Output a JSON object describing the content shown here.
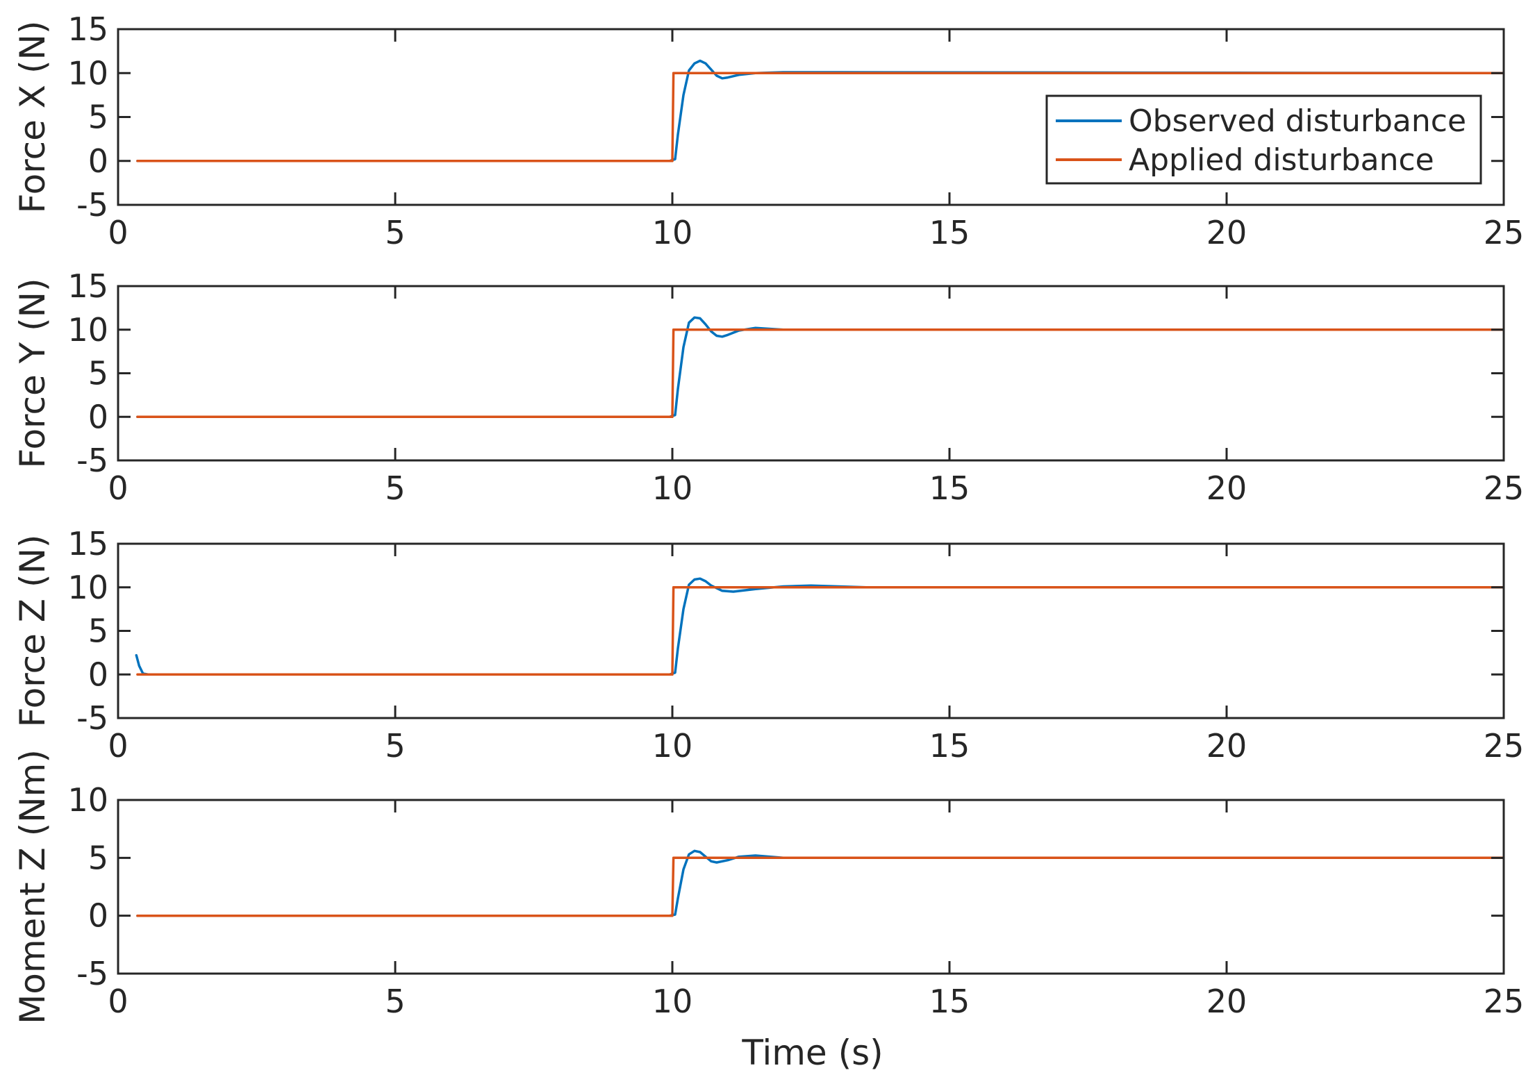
{
  "colors": {
    "observed": "#0072bd",
    "applied": "#d95319",
    "axis": "#262626",
    "background": "#ffffff"
  },
  "chart_data": [
    {
      "type": "line",
      "ylabel": "Force X (N)",
      "xlabel": "",
      "xlim": [
        0,
        25
      ],
      "ylim": [
        -5,
        15
      ],
      "xticks": [
        "0",
        "5",
        "10",
        "15",
        "20",
        "25"
      ],
      "yticks": [
        "15",
        "10",
        "5",
        "0",
        "-5"
      ],
      "grid": false,
      "legend": {
        "position": "inside-right",
        "entries": [
          "Observed disturbance",
          "Applied disturbance"
        ]
      },
      "series": [
        {
          "name": "Observed disturbance",
          "x": [
            0.35,
            9.95,
            10.05,
            10.1,
            10.2,
            10.3,
            10.4,
            10.5,
            10.6,
            10.7,
            10.8,
            10.9,
            11.0,
            11.2,
            11.5,
            12.0,
            13.0,
            25.0
          ],
          "y": [
            0,
            0,
            0.2,
            3.0,
            7.5,
            10.3,
            11.1,
            11.4,
            11.1,
            10.4,
            9.7,
            9.4,
            9.5,
            9.8,
            10.0,
            10.1,
            10.1,
            10.0
          ]
        },
        {
          "name": "Applied disturbance",
          "x": [
            0.35,
            10.0,
            10.02,
            25.0
          ],
          "y": [
            0,
            0,
            10,
            10
          ]
        }
      ]
    },
    {
      "type": "line",
      "ylabel": "Force Y (N)",
      "xlabel": "",
      "xlim": [
        0,
        25
      ],
      "ylim": [
        -5,
        15
      ],
      "xticks": [
        "0",
        "5",
        "10",
        "15",
        "20",
        "25"
      ],
      "yticks": [
        "15",
        "10",
        "5",
        "0",
        "-5"
      ],
      "grid": false,
      "series": [
        {
          "name": "Observed disturbance",
          "x": [
            0.35,
            9.95,
            10.05,
            10.1,
            10.2,
            10.3,
            10.4,
            10.5,
            10.6,
            10.7,
            10.8,
            10.9,
            11.0,
            11.2,
            11.5,
            12.0,
            25.0
          ],
          "y": [
            0,
            0,
            0.2,
            3.2,
            8.0,
            10.8,
            11.4,
            11.3,
            10.6,
            9.8,
            9.3,
            9.2,
            9.4,
            9.9,
            10.2,
            10.0,
            10.0
          ]
        },
        {
          "name": "Applied disturbance",
          "x": [
            0.35,
            10.0,
            10.02,
            25.0
          ],
          "y": [
            0,
            0,
            10,
            10
          ]
        }
      ]
    },
    {
      "type": "line",
      "ylabel": "Force Z (N)",
      "xlabel": "",
      "xlim": [
        0,
        25
      ],
      "ylim": [
        -5,
        15
      ],
      "xticks": [
        "0",
        "5",
        "10",
        "15",
        "20",
        "25"
      ],
      "yticks": [
        "15",
        "10",
        "5",
        "0",
        "-5"
      ],
      "grid": false,
      "series": [
        {
          "name": "Observed disturbance",
          "x": [
            0.33,
            0.38,
            0.45,
            0.55,
            9.95,
            10.05,
            10.1,
            10.2,
            10.3,
            10.4,
            10.5,
            10.6,
            10.7,
            10.9,
            11.1,
            11.5,
            12.0,
            12.5,
            13.5,
            25.0
          ],
          "y": [
            2.2,
            1.0,
            0.1,
            0,
            0,
            0.2,
            3.0,
            7.5,
            10.3,
            10.9,
            11.0,
            10.7,
            10.2,
            9.6,
            9.5,
            9.8,
            10.1,
            10.2,
            10.0,
            10.0
          ]
        },
        {
          "name": "Applied disturbance",
          "x": [
            0.35,
            10.0,
            10.02,
            25.0
          ],
          "y": [
            0,
            0,
            10,
            10
          ]
        }
      ]
    },
    {
      "type": "line",
      "ylabel": "Moment Z (Nm)",
      "xlabel": "Time (s)",
      "xlim": [
        0,
        25
      ],
      "ylim": [
        -5,
        10
      ],
      "xticks": [
        "0",
        "5",
        "10",
        "15",
        "20",
        "25"
      ],
      "yticks": [
        "10",
        "5",
        "0",
        "-5"
      ],
      "grid": false,
      "series": [
        {
          "name": "Observed disturbance",
          "x": [
            0.35,
            9.95,
            10.05,
            10.1,
            10.2,
            10.3,
            10.4,
            10.5,
            10.6,
            10.7,
            10.8,
            11.0,
            11.2,
            11.5,
            12.0,
            25.0
          ],
          "y": [
            0,
            0,
            0.1,
            1.5,
            4.0,
            5.3,
            5.6,
            5.5,
            5.1,
            4.7,
            4.6,
            4.8,
            5.1,
            5.2,
            5.0,
            5.0
          ]
        },
        {
          "name": "Applied disturbance",
          "x": [
            0.35,
            10.0,
            10.02,
            25.0
          ],
          "y": [
            0,
            0,
            5,
            5
          ]
        }
      ]
    }
  ]
}
